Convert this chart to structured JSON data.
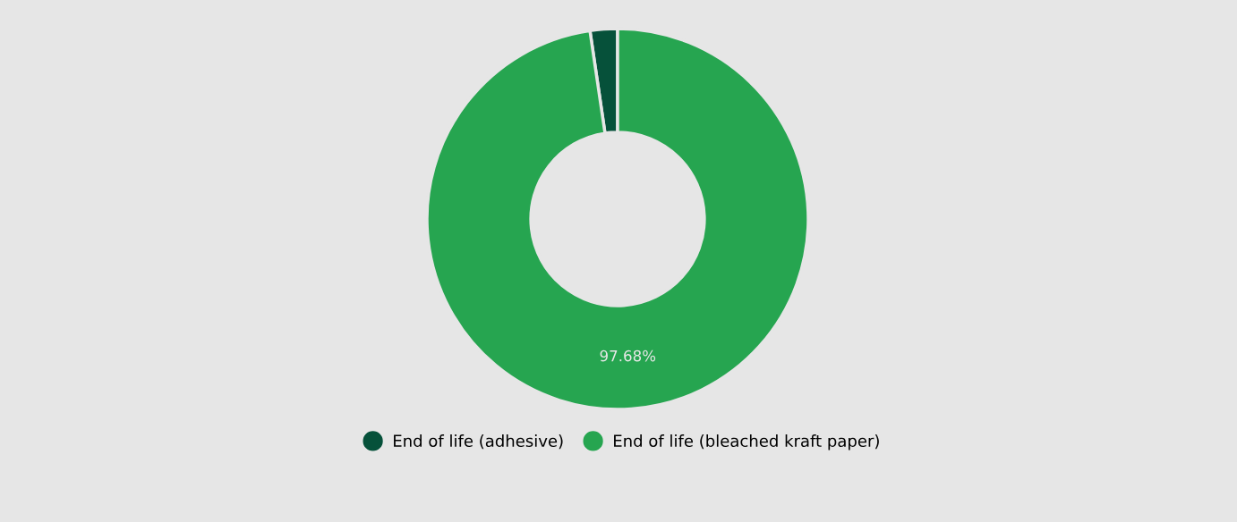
{
  "chart_data": {
    "type": "donut",
    "categories": [
      "End of life (adhesive)",
      "End of life (bleached kraft paper)"
    ],
    "values": [
      2.32,
      97.68
    ],
    "colors": [
      "#06513a",
      "#26a550"
    ],
    "value_labels": [
      null,
      "97.68%"
    ],
    "legend": "bottom"
  }
}
